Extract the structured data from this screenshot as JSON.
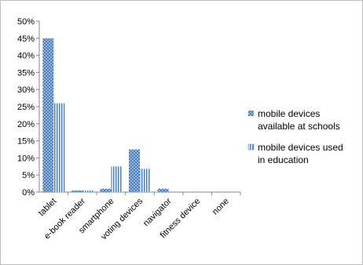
{
  "chart_data": {
    "type": "bar",
    "categories": [
      "tablet",
      "e-book reader",
      "smartphone",
      "voting devices",
      "navigator",
      "fitness device",
      "none"
    ],
    "series": [
      {
        "name": "mobile devices available at schools",
        "name_lines": [
          "mobile devices",
          "available at schools"
        ],
        "values": [
          45,
          0.5,
          1,
          12.5,
          1,
          0,
          0
        ],
        "color": "#4a7ebb",
        "pattern": "dots"
      },
      {
        "name": "mobile devices used in education",
        "name_lines": [
          "mobile devices used",
          "in education"
        ],
        "values": [
          26,
          0.5,
          7.5,
          6.8,
          0,
          0,
          0
        ],
        "color": "#4a7ebb",
        "pattern": "vertical-stripes"
      }
    ],
    "y_ticks": [
      "0%",
      "5%",
      "10%",
      "15%",
      "20%",
      "25%",
      "30%",
      "35%",
      "40%",
      "45%",
      "50%"
    ],
    "ylim": [
      0,
      50
    ],
    "grid": false,
    "legend_position": "right"
  }
}
